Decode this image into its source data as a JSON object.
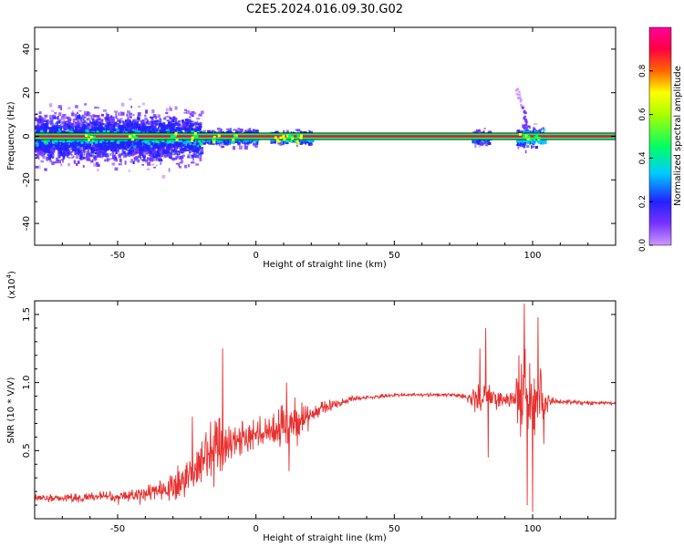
{
  "title": "C2E5.2024.016.09.30.G02",
  "colors": {
    "snr_line": "#e8302e",
    "band_line": "#ff0040",
    "band_edge": "#000000",
    "frame": "#000000"
  },
  "chart_data": [
    {
      "id": "spectrogram",
      "type": "heatmap",
      "xlabel": "Height of straight line (km)",
      "ylabel": "Frequency (Hz)",
      "xlim": [
        -80,
        130
      ],
      "ylim": [
        -50,
        50
      ],
      "xticks": [
        -50,
        0,
        50,
        100
      ],
      "yticks": [
        -40,
        -20,
        0,
        20,
        40
      ],
      "colormap": [
        "#cc99ff",
        "#7733ff",
        "#2222ff",
        "#00ccff",
        "#00ff66",
        "#ffff00",
        "#ff6600",
        "#ff0044",
        "#ff0099"
      ],
      "band": {
        "x": [
          -80,
          130
        ],
        "y": [
          -1.5,
          1.5
        ],
        "center": 0
      },
      "scatter_regions": [
        {
          "x": [
            -80,
            -20
          ],
          "spread_hz": 10,
          "intensity": 0.25
        },
        {
          "x": [
            -20,
            0
          ],
          "spread_hz": 3,
          "intensity": 0.35
        },
        {
          "x": [
            5,
            20
          ],
          "spread_hz": 2.5,
          "intensity": 0.4
        },
        {
          "x": [
            78,
            84
          ],
          "spread_hz": 3,
          "intensity": 0.3
        },
        {
          "x": [
            94,
            104
          ],
          "spread_hz": 4,
          "intensity": 0.4
        }
      ],
      "streak": {
        "x": [
          94,
          98
        ],
        "y": [
          22,
          4
        ]
      }
    },
    {
      "id": "colorbar",
      "type": "heatmap",
      "label": "Normalized spectral amplitude",
      "range": [
        0,
        1
      ],
      "ticks": [
        0.0,
        0.2,
        0.4,
        0.6,
        0.8
      ],
      "tick_labels": [
        "0.0",
        "0.2",
        "0.4",
        "0.6",
        "0.8"
      ]
    },
    {
      "id": "snr",
      "type": "line",
      "xlabel": "Height of straight line (km)",
      "ylabel": "SNR (10 * V/V)",
      "yscale_label": "(x10",
      "yscale_exp": "4",
      "yscale_close": ")",
      "xlim": [
        -80,
        130
      ],
      "ylim": [
        0,
        1.6
      ],
      "xticks": [
        -50,
        0,
        50,
        100
      ],
      "yticks": [
        0.5,
        1.0,
        1.5
      ],
      "ytick_labels": [
        "0.5",
        "1.0",
        "1.5"
      ],
      "envelope": {
        "x": [
          -80,
          -50,
          -40,
          -35,
          -30,
          -25,
          -20,
          -15,
          -12,
          -10,
          -5,
          0,
          5,
          10,
          15,
          20,
          25,
          30,
          35,
          40,
          50,
          60,
          70,
          75,
          80,
          82,
          85,
          90,
          95,
          97,
          100,
          103,
          110,
          120,
          130
        ],
        "y": [
          0.15,
          0.16,
          0.18,
          0.21,
          0.25,
          0.32,
          0.4,
          0.5,
          0.55,
          0.58,
          0.6,
          0.62,
          0.66,
          0.68,
          0.73,
          0.78,
          0.82,
          0.85,
          0.88,
          0.89,
          0.91,
          0.91,
          0.91,
          0.9,
          0.88,
          0.86,
          0.88,
          0.88,
          0.87,
          0.87,
          0.87,
          0.86,
          0.86,
          0.85,
          0.85
        ]
      },
      "noise": {
        "x": [
          -80,
          -50,
          -40,
          -35,
          -30,
          -25,
          -20,
          -15,
          -12,
          -10,
          -5,
          0,
          5,
          10,
          15,
          20,
          25,
          30,
          40,
          60,
          75,
          79,
          82,
          85,
          90,
          95,
          97,
          100,
          103,
          106,
          110,
          130
        ],
        "amp": [
          0.05,
          0.07,
          0.1,
          0.12,
          0.2,
          0.28,
          0.32,
          0.4,
          0.5,
          0.3,
          0.25,
          0.22,
          0.22,
          0.3,
          0.3,
          0.15,
          0.08,
          0.05,
          0.025,
          0.02,
          0.03,
          0.12,
          0.4,
          0.15,
          0.06,
          0.35,
          0.7,
          0.55,
          0.45,
          0.05,
          0.03,
          0.02
        ]
      },
      "extremes": [
        {
          "x": -12,
          "y": 1.25
        },
        {
          "x": -13,
          "y": 0.35
        },
        {
          "x": -23,
          "y": 0.75
        },
        {
          "x": 11,
          "y": 1.0
        },
        {
          "x": 12,
          "y": 0.35
        },
        {
          "x": 81,
          "y": 1.25
        },
        {
          "x": 83,
          "y": 1.4
        },
        {
          "x": 84,
          "y": 0.45
        },
        {
          "x": 95,
          "y": 1.2
        },
        {
          "x": 97,
          "y": 1.58
        },
        {
          "x": 98,
          "y": 0.1
        },
        {
          "x": 100,
          "y": 0.05
        },
        {
          "x": 102,
          "y": 1.48
        },
        {
          "x": 104,
          "y": 0.55
        }
      ]
    }
  ]
}
